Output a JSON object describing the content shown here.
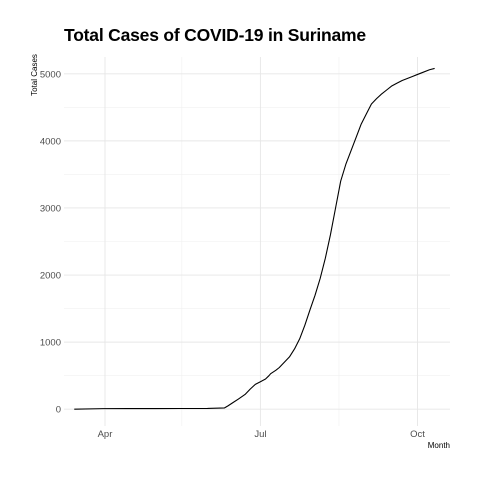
{
  "chart_data": {
    "type": "line",
    "title": "Total Cases of COVID-19 in Suriname",
    "xlabel": "Month",
    "ylabel": "Total Cases",
    "x_ticks": [
      {
        "label": "Apr",
        "date": "2020-04-01"
      },
      {
        "label": "Jul",
        "date": "2020-07-01"
      },
      {
        "label": "Oct",
        "date": "2020-10-01"
      }
    ],
    "y_ticks": [
      0,
      1000,
      2000,
      3000,
      4000,
      5000
    ],
    "xlim": [
      "2020-03-08",
      "2020-10-20"
    ],
    "ylim": [
      -250,
      5250
    ],
    "grid": true,
    "line_color": "#000000",
    "series": [
      {
        "x": [
          "2020-03-14",
          "2020-03-31",
          "2020-04-15",
          "2020-05-01",
          "2020-05-15",
          "2020-05-31",
          "2020-06-10",
          "2020-06-12",
          "2020-06-15",
          "2020-06-18",
          "2020-06-22",
          "2020-06-25",
          "2020-06-28",
          "2020-07-01",
          "2020-07-04",
          "2020-07-06",
          "2020-07-07",
          "2020-07-10",
          "2020-07-12",
          "2020-07-15",
          "2020-07-18",
          "2020-07-21",
          "2020-07-24",
          "2020-07-27",
          "2020-07-30",
          "2020-08-02",
          "2020-08-05",
          "2020-08-08",
          "2020-08-11",
          "2020-08-14",
          "2020-08-17",
          "2020-08-20",
          "2020-08-23",
          "2020-08-26",
          "2020-08-29",
          "2020-09-01",
          "2020-09-04",
          "2020-09-07",
          "2020-09-10",
          "2020-09-13",
          "2020-09-16",
          "2020-09-19",
          "2020-09-22",
          "2020-09-25",
          "2020-09-28",
          "2020-10-01",
          "2020-10-04",
          "2020-10-08",
          "2020-10-11"
        ],
        "y": [
          1,
          9,
          10,
          10,
          11,
          12,
          20,
          50,
          100,
          150,
          220,
          300,
          370,
          410,
          450,
          500,
          530,
          580,
          620,
          700,
          780,
          900,
          1050,
          1250,
          1480,
          1700,
          1950,
          2250,
          2600,
          3000,
          3400,
          3650,
          3850,
          4050,
          4250,
          4400,
          4550,
          4630,
          4700,
          4760,
          4820,
          4860,
          4900,
          4930,
          4960,
          4990,
          5020,
          5060,
          5080
        ]
      }
    ]
  }
}
